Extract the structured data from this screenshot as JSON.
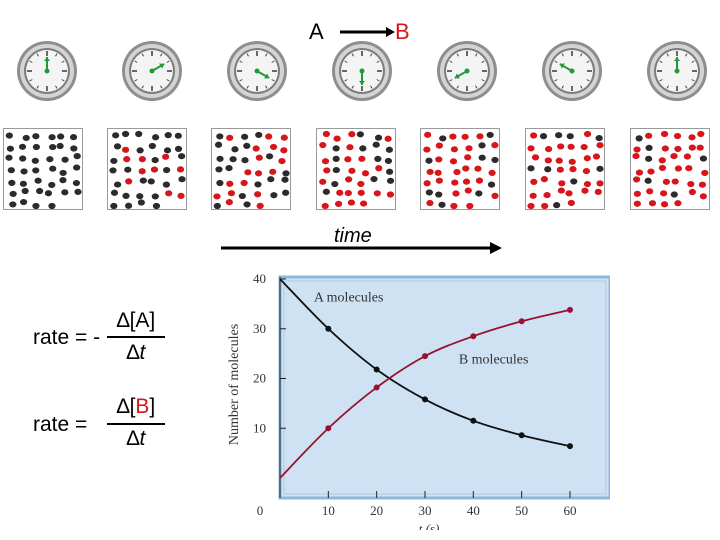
{
  "reaction": {
    "reactant": "A",
    "product": "B"
  },
  "time_label": "time",
  "equations": [
    {
      "prefix": "rate = -",
      "numerator": "∆[A]",
      "denominator_delta": "∆",
      "denominator_var": "t"
    },
    {
      "prefix": "rate =",
      "numerator_delta": "∆[",
      "numerator_species": "B",
      "numerator_close": "]",
      "denominator_delta": "∆",
      "denominator_var": "t"
    }
  ],
  "colors": {
    "molecule_A": "#2b2b2b",
    "molecule_B": "#d7151b",
    "arrow_B": "#d7151b",
    "clock_hand": "#1f9a3c",
    "plot_bg": "#cfe2f3",
    "plot_border": "#8db7db"
  },
  "snapshots": [
    {
      "B_count": 0,
      "total": 40
    },
    {
      "B_count": 10,
      "total": 40
    },
    {
      "B_count": 18,
      "total": 40
    },
    {
      "B_count": 25,
      "total": 40
    },
    {
      "B_count": 29,
      "total": 40
    },
    {
      "B_count": 31,
      "total": 40
    },
    {
      "B_count": 34,
      "total": 40
    }
  ],
  "chart_data": {
    "type": "line",
    "xlabel": "t (s)",
    "ylabel": "Number of molecules",
    "xlim": [
      0,
      60
    ],
    "ylim": [
      0,
      40
    ],
    "x_ticks": [
      0,
      10,
      20,
      30,
      40,
      50,
      60
    ],
    "y_ticks": [
      10,
      20,
      30,
      40
    ],
    "grid": false,
    "series": [
      {
        "name": "A molecules",
        "color": "#111111",
        "x": [
          0,
          10,
          20,
          30,
          40,
          50,
          60
        ],
        "y": [
          40,
          30,
          21.8,
          15.8,
          11.5,
          8.6,
          6.4
        ]
      },
      {
        "name": "B molecules",
        "color": "#9b1030",
        "x": [
          0,
          10,
          20,
          30,
          40,
          50,
          60
        ],
        "y": [
          0,
          10,
          18.2,
          24.5,
          28.5,
          31.5,
          33.8
        ]
      }
    ]
  }
}
